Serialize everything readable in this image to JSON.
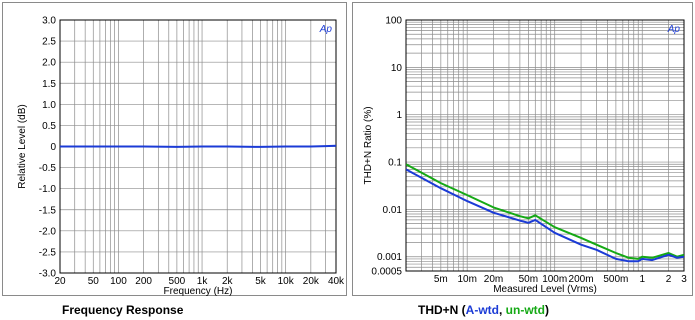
{
  "charts": {
    "left": {
      "caption": "Frequency Response",
      "logo": "Ap"
    },
    "right": {
      "caption_prefix": "THD+N (",
      "caption_a": "A-wtd",
      "caption_sep": ", ",
      "caption_u": "un-wtd",
      "caption_suffix": ")",
      "logo": "Ap"
    }
  },
  "colors": {
    "a_wtd": "#1b3bd6",
    "un_wtd": "#15a915",
    "freq_line": "#1b3bd6",
    "grid": "#8c8c8c",
    "frame": "#000000"
  },
  "chart_data": [
    {
      "type": "line",
      "title": "Frequency Response",
      "xlabel": "Frequency (Hz)",
      "ylabel": "Relative Level (dB)",
      "x_scale": "log",
      "xlim": [
        20,
        40000
      ],
      "ylim": [
        -3.0,
        3.0
      ],
      "grid": true,
      "x_ticks": [
        20,
        50,
        100,
        200,
        500,
        1000,
        2000,
        5000,
        10000,
        20000,
        40000
      ],
      "x_tick_labels": [
        "20",
        "50",
        "100",
        "200",
        "500",
        "1k",
        "2k",
        "5k",
        "10k",
        "20k",
        "40k"
      ],
      "y_ticks": [
        3.0,
        2.5,
        2.0,
        1.5,
        1.0,
        0.5,
        0,
        -0.5,
        -1.0,
        -1.5,
        -2.0,
        -2.5,
        -3.0
      ],
      "y_tick_labels": [
        "3.0",
        "2.5",
        "2.0",
        "1.5",
        "1.0",
        "0.5",
        "0",
        "-0.5",
        "-1.0",
        "-1.5",
        "-2.0",
        "-2.5",
        "-3.0"
      ],
      "series": [
        {
          "color": "#1b3bd6",
          "x": [
            20,
            50,
            100,
            200,
            500,
            1000,
            2000,
            5000,
            10000,
            20000,
            30000,
            40000
          ],
          "y": [
            0.0,
            0.0,
            0.0,
            0.0,
            -0.01,
            0.0,
            0.0,
            -0.01,
            0.0,
            0.0,
            0.01,
            0.02
          ]
        }
      ]
    },
    {
      "type": "line",
      "title": "THD+N (A-wtd, un-wtd)",
      "xlabel": "Measured Level (Vrms)",
      "ylabel": "THD+N Ratio (%)",
      "x_scale": "log",
      "y_scale": "log",
      "xlim": [
        0.002,
        3
      ],
      "ylim": [
        0.0005,
        100
      ],
      "grid": true,
      "x_ticks": [
        0.005,
        0.01,
        0.02,
        0.05,
        0.1,
        0.2,
        0.5,
        1,
        2,
        3
      ],
      "x_tick_labels": [
        "5m",
        "10m",
        "20m",
        "50m",
        "100m",
        "200m",
        "500m",
        "1",
        "2",
        "3"
      ],
      "y_ticks": [
        100,
        10,
        1,
        0.1,
        0.01,
        0.001,
        0.0005
      ],
      "y_tick_labels": [
        "100",
        "10",
        "1",
        "0.1",
        "0.01",
        "0.001",
        "0.0005"
      ],
      "series": [
        {
          "name": "A-wtd",
          "color": "#1b3bd6",
          "x": [
            0.002,
            0.005,
            0.01,
            0.02,
            0.04,
            0.05,
            0.06,
            0.1,
            0.2,
            0.3,
            0.5,
            0.7,
            0.9,
            1.0,
            1.3,
            2.0,
            2.5,
            3.0
          ],
          "y": [
            0.07,
            0.028,
            0.015,
            0.0085,
            0.0058,
            0.0052,
            0.006,
            0.0032,
            0.0018,
            0.0014,
            0.0009,
            0.0008,
            0.0008,
            0.0009,
            0.00085,
            0.0011,
            0.00095,
            0.001
          ]
        },
        {
          "name": "un-wtd",
          "color": "#15a915",
          "x": [
            0.002,
            0.005,
            0.01,
            0.02,
            0.04,
            0.05,
            0.06,
            0.1,
            0.2,
            0.3,
            0.5,
            0.7,
            0.9,
            1.0,
            1.3,
            2.0,
            2.5,
            3.0
          ],
          "y": [
            0.09,
            0.036,
            0.02,
            0.011,
            0.0072,
            0.0065,
            0.0075,
            0.0042,
            0.0025,
            0.0018,
            0.0012,
            0.00095,
            0.0009,
            0.001,
            0.00095,
            0.0012,
            0.001,
            0.0011
          ]
        }
      ]
    }
  ]
}
